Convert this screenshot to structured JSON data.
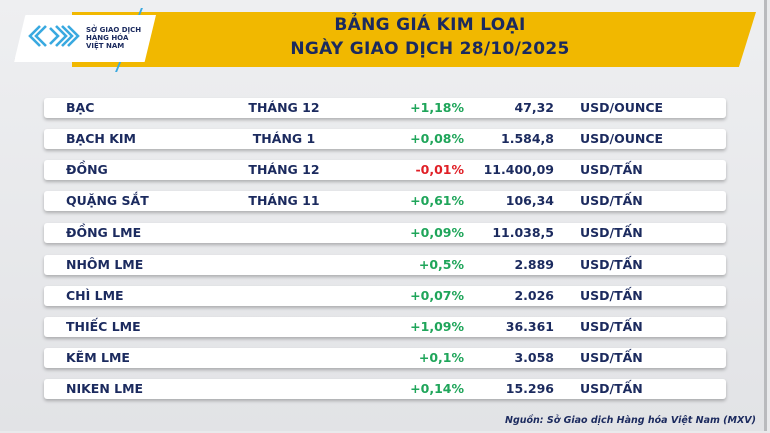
{
  "header": {
    "title_line1": "BẢNG GIÁ KIM LOẠI",
    "title_line2": "NGÀY GIAO DỊCH 28/10/2025"
  },
  "logo": {
    "line1": "SỞ GIAO DỊCH",
    "line2": "HÀNG HÓA",
    "line3": "VIỆT NAM"
  },
  "colors": {
    "banner": "#f1b800",
    "navy": "#1b2a5e",
    "up": "#1fa55a",
    "down": "#e01f26"
  },
  "rows": [
    {
      "name": "BẠC",
      "month": "THÁNG 12",
      "change": "+1,18%",
      "price": "47,32",
      "unit": "USD/OUNCE",
      "dir": "up"
    },
    {
      "name": "BẠCH KIM",
      "month": "THÁNG 1",
      "change": "+0,08%",
      "price": "1.584,8",
      "unit": "USD/OUNCE",
      "dir": "up"
    },
    {
      "name": "ĐỒNG",
      "month": "THÁNG 12",
      "change": "-0,01%",
      "price": "11.400,09",
      "unit": "USD/TẤN",
      "dir": "down"
    },
    {
      "name": "QUẶNG SẮT",
      "month": "THÁNG 11",
      "change": "+0,61%",
      "price": "106,34",
      "unit": "USD/TẤN",
      "dir": "up"
    },
    {
      "name": "ĐỒNG LME",
      "month": "",
      "change": "+0,09%",
      "price": "11.038,5",
      "unit": "USD/TẤN",
      "dir": "up"
    },
    {
      "name": "NHÔM LME",
      "month": "",
      "change": "+0,5%",
      "price": "2.889",
      "unit": "USD/TẤN",
      "dir": "up"
    },
    {
      "name": "CHÌ LME",
      "month": "",
      "change": "+0,07%",
      "price": "2.026",
      "unit": "USD/TẤN",
      "dir": "up"
    },
    {
      "name": "THIẾC LME",
      "month": "",
      "change": "+1,09%",
      "price": "36.361",
      "unit": "USD/TẤN",
      "dir": "up"
    },
    {
      "name": "KẼM LME",
      "month": "",
      "change": "+0,1%",
      "price": "3.058",
      "unit": "USD/TẤN",
      "dir": "up"
    },
    {
      "name": "NIKEN LME",
      "month": "",
      "change": "+0,14%",
      "price": "15.296",
      "unit": "USD/TẤN",
      "dir": "up"
    }
  ],
  "footer": {
    "source": "Nguồn: Sở Giao dịch Hàng hóa Việt Nam (MXV)"
  }
}
